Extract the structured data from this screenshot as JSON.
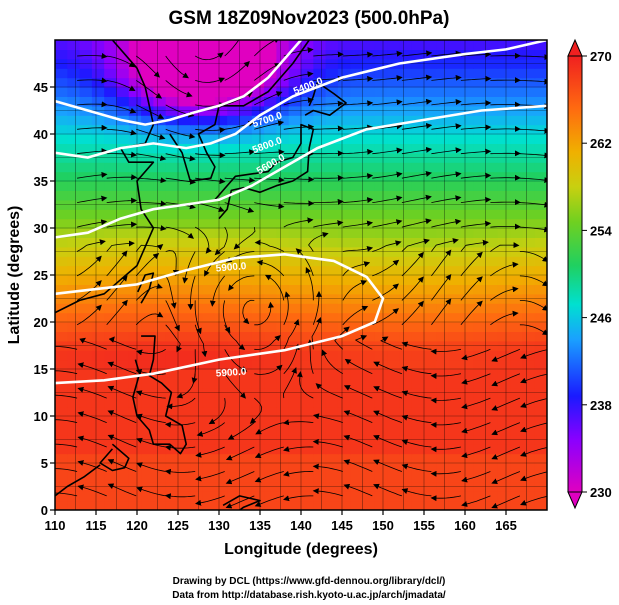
{
  "title": "GSM 18Z09Nov2023 (500.0hPa)",
  "xlabel": "Longitude (degrees)",
  "ylabel": "Latitude  (degrees)",
  "x_ticks": [
    "110",
    "115",
    "120",
    "125",
    "130",
    "135",
    "140",
    "145",
    "150",
    "155",
    "160",
    "165"
  ],
  "y_ticks": [
    "0",
    "5",
    "10",
    "15",
    "20",
    "25",
    "30",
    "35",
    "40",
    "45"
  ],
  "colorbar": {
    "ticks": [
      "230",
      "238",
      "246",
      "254",
      "262",
      "270"
    ]
  },
  "contour_labels": [
    "5400.0",
    "5700.0",
    "5800.0",
    "5600.0",
    "5900.0",
    "5900.0"
  ],
  "credits": {
    "line1": "Drawing by DCL (https://www.gfd-dennou.org/library/dcl/)",
    "line2": "Data from http://database.rish.kyoto-u.ac.jp/arch/jmadata/"
  },
  "chart_data": {
    "type": "heatmap",
    "title": "GSM 18Z09Nov2023 (500.0hPa)",
    "xlabel": "Longitude (degrees)",
    "ylabel": "Latitude  (degrees)",
    "xlim": [
      110,
      170
    ],
    "ylim": [
      0,
      50
    ],
    "color_range": [
      230,
      270
    ],
    "colorbar_ticks": [
      230,
      238,
      246,
      254,
      262,
      270
    ],
    "contours": [
      {
        "label": "5400.0",
        "points": [
          [
            110,
            43.5
          ],
          [
            114,
            42.5
          ],
          [
            118,
            41.5
          ],
          [
            121,
            41
          ],
          [
            124,
            41.5
          ],
          [
            127,
            42.3
          ],
          [
            130,
            43
          ],
          [
            133,
            44
          ],
          [
            136,
            46
          ],
          [
            138,
            48
          ],
          [
            140,
            50
          ]
        ]
      },
      {
        "label": "5700.0",
        "points": [
          [
            110,
            38
          ],
          [
            114,
            37.5
          ],
          [
            118,
            38.5
          ],
          [
            122,
            39
          ],
          [
            126,
            38.5
          ],
          [
            129,
            39
          ],
          [
            132,
            40
          ],
          [
            135,
            42
          ],
          [
            139,
            44
          ],
          [
            145,
            46
          ],
          [
            152,
            47.5
          ],
          [
            160,
            48.5
          ],
          [
            165,
            49
          ],
          [
            170,
            50
          ]
        ]
      },
      {
        "label": "5800.0",
        "points": [
          [
            110,
            29
          ],
          [
            114,
            29.5
          ],
          [
            118,
            31
          ],
          [
            122,
            32
          ],
          [
            126,
            32.5
          ],
          [
            130,
            33
          ],
          [
            134,
            34.5
          ],
          [
            138,
            36.5
          ],
          [
            142,
            38.5
          ],
          [
            148,
            40.5
          ],
          [
            155,
            41.5
          ],
          [
            162,
            42.5
          ],
          [
            170,
            43
          ]
        ]
      },
      {
        "label": "5900.0",
        "points": [
          [
            110,
            23
          ],
          [
            115,
            23.5
          ],
          [
            120,
            24
          ],
          [
            126,
            25.5
          ],
          [
            132,
            26.8
          ],
          [
            138,
            27.2
          ],
          [
            144,
            26.5
          ],
          [
            148,
            24.8
          ],
          [
            150,
            22.5
          ],
          [
            149,
            20
          ],
          [
            145,
            18.5
          ],
          [
            138,
            17
          ],
          [
            130,
            16
          ],
          [
            122,
            14.5
          ],
          [
            116,
            13.8
          ],
          [
            110,
            13.5
          ]
        ]
      }
    ],
    "low_center": [
      128,
      47
    ]
  }
}
